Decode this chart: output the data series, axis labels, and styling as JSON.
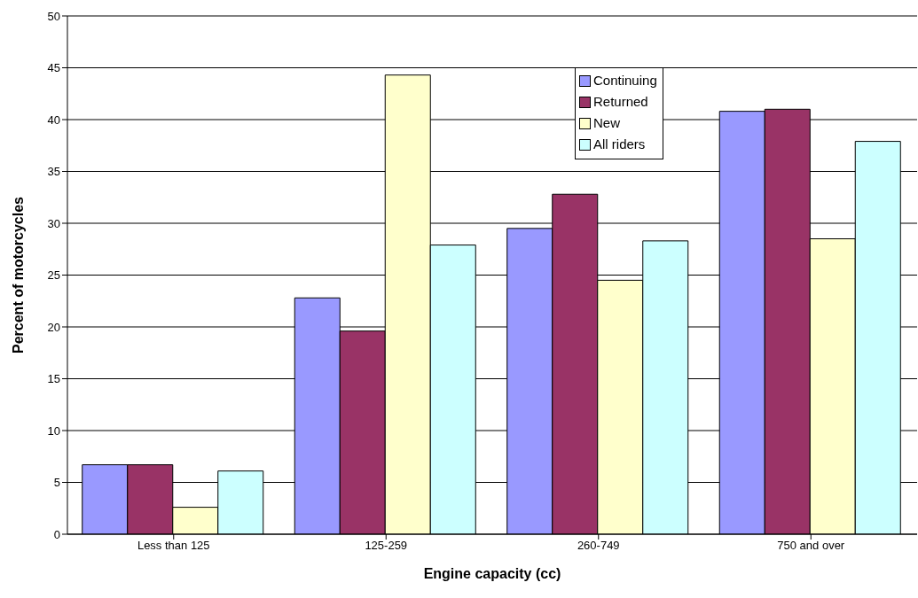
{
  "chart_data": {
    "type": "bar",
    "xlabel": "Engine capacity (cc)",
    "ylabel": "Percent of motorcycles",
    "categories": [
      "Less than 125",
      "125-259",
      "260-749",
      "750 and over"
    ],
    "series": [
      {
        "name": "Continuing",
        "color": "#9999ff",
        "values": [
          6.7,
          22.8,
          29.5,
          40.8
        ]
      },
      {
        "name": "Returned",
        "color": "#993366",
        "values": [
          6.7,
          19.6,
          32.8,
          41.0
        ]
      },
      {
        "name": "New",
        "color": "#ffffcc",
        "values": [
          2.6,
          44.3,
          24.5,
          28.5
        ]
      },
      {
        "name": "All riders",
        "color": "#ccffff",
        "values": [
          6.1,
          27.9,
          28.3,
          37.9
        ]
      }
    ],
    "ylim": [
      0,
      50
    ],
    "yticks": [
      0,
      5,
      10,
      15,
      20,
      25,
      30,
      35,
      40,
      45,
      50
    ],
    "grid": "y",
    "legend": "top right"
  }
}
